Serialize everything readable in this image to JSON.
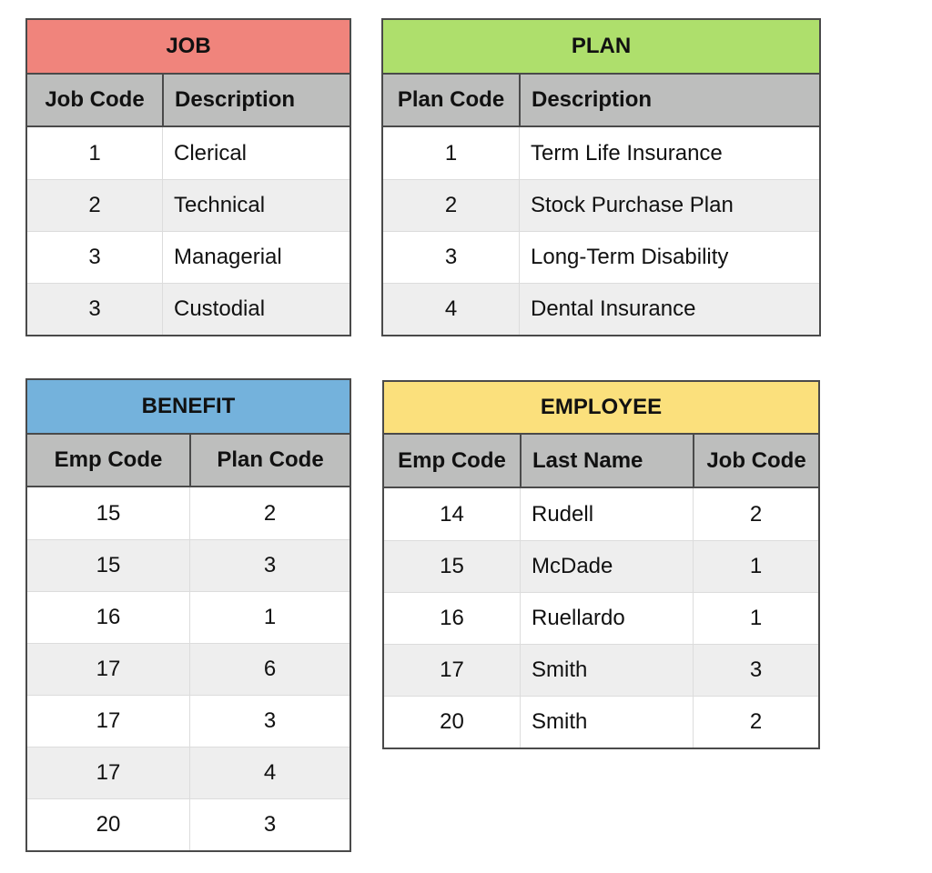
{
  "colors": {
    "job_header": "#f0847c",
    "plan_header": "#aedf6c",
    "benefit_header": "#74b2dc",
    "employee_header": "#fbe07c",
    "column_header": "#bdbebd",
    "alt_row": "#eeeeee"
  },
  "job": {
    "title": "JOB",
    "columns": [
      "Job Code",
      "Description"
    ],
    "rows": [
      [
        "1",
        "Clerical"
      ],
      [
        "2",
        "Technical"
      ],
      [
        "3",
        "Managerial"
      ],
      [
        "3",
        "Custodial"
      ]
    ]
  },
  "plan": {
    "title": "PLAN",
    "columns": [
      "Plan Code",
      "Description"
    ],
    "rows": [
      [
        "1",
        "Term Life Insurance"
      ],
      [
        "2",
        "Stock Purchase Plan"
      ],
      [
        "3",
        "Long-Term Disability"
      ],
      [
        "4",
        "Dental Insurance"
      ]
    ]
  },
  "benefit": {
    "title": "BENEFIT",
    "columns": [
      "Emp Code",
      "Plan Code"
    ],
    "rows": [
      [
        "15",
        "2"
      ],
      [
        "15",
        "3"
      ],
      [
        "16",
        "1"
      ],
      [
        "17",
        "6"
      ],
      [
        "17",
        "3"
      ],
      [
        "17",
        "4"
      ],
      [
        "20",
        "3"
      ]
    ]
  },
  "employee": {
    "title": "EMPLOYEE",
    "columns": [
      "Emp Code",
      "Last Name",
      "Job Code"
    ],
    "rows": [
      [
        "14",
        "Rudell",
        "2"
      ],
      [
        "15",
        "McDade",
        "1"
      ],
      [
        "16",
        "Ruellardo",
        "1"
      ],
      [
        "17",
        "Smith",
        "3"
      ],
      [
        "20",
        "Smith",
        "2"
      ]
    ]
  }
}
